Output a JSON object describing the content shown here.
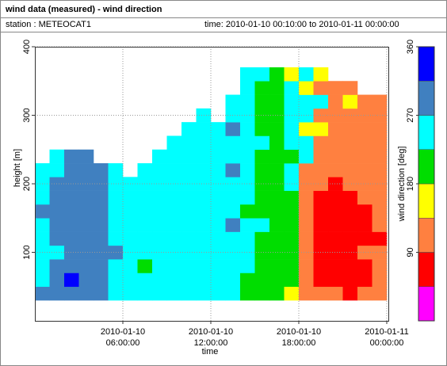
{
  "header": {
    "title": "wind data (measured) - wind direction",
    "station": "station : METEOCAT1",
    "time": "time: 2010-01-10 00:10:00 to 2010-01-11 00:00:00"
  },
  "chart_data": {
    "type": "heatmap",
    "xlabel": "time",
    "ylabel": "height [m]",
    "xlim": [
      0,
      24
    ],
    "ylim": [
      0,
      400
    ],
    "xticks": [
      {
        "value": 6,
        "label": [
          "2010-01-10",
          "06:00:00"
        ]
      },
      {
        "value": 12,
        "label": [
          "2010-01-10",
          "12:00:00"
        ]
      },
      {
        "value": 18,
        "label": [
          "2010-01-10",
          "18:00:00"
        ]
      },
      {
        "value": 24,
        "label": [
          "2010-01-11",
          "00:00:00"
        ]
      }
    ],
    "yticks": [
      100,
      200,
      300,
      400
    ],
    "grid": true,
    "x_edges": [
      0,
      1,
      2,
      3,
      4,
      5,
      6,
      7,
      8,
      9,
      10,
      11,
      12,
      13,
      14,
      15,
      16,
      17,
      18,
      19,
      20,
      21,
      22,
      23,
      24
    ],
    "y_edges": [
      30,
      50,
      70,
      90,
      110,
      130,
      150,
      170,
      190,
      210,
      230,
      250,
      270,
      290,
      310,
      330,
      350,
      370
    ],
    "z": [
      [
        290,
        250,
        250,
        250,
        250,
        250,
        290,
        250,
        250,
        250,
        null,
        null,
        null,
        null,
        null,
        null,
        null
      ],
      [
        290,
        290,
        290,
        250,
        290,
        290,
        290,
        290,
        290,
        250,
        250,
        null,
        null,
        null,
        null,
        null,
        null
      ],
      [
        290,
        330,
        290,
        290,
        290,
        290,
        290,
        290,
        290,
        290,
        290,
        null,
        null,
        null,
        null,
        null,
        null
      ],
      [
        290,
        290,
        290,
        290,
        290,
        290,
        290,
        290,
        290,
        290,
        290,
        null,
        null,
        null,
        null,
        null,
        null
      ],
      [
        290,
        290,
        290,
        290,
        290,
        290,
        290,
        290,
        290,
        290,
        null,
        null,
        null,
        null,
        null,
        null,
        null
      ],
      [
        250,
        250,
        250,
        290,
        250,
        250,
        250,
        250,
        250,
        250,
        null,
        null,
        null,
        null,
        null,
        null,
        null
      ],
      [
        250,
        250,
        250,
        250,
        250,
        250,
        250,
        250,
        250,
        null,
        null,
        null,
        null,
        null,
        null,
        null,
        null
      ],
      [
        250,
        250,
        200,
        250,
        250,
        250,
        250,
        250,
        250,
        250,
        null,
        null,
        null,
        null,
        null,
        null,
        null
      ],
      [
        250,
        250,
        250,
        250,
        250,
        250,
        250,
        250,
        250,
        250,
        250,
        null,
        null,
        null,
        null,
        null,
        null
      ],
      [
        250,
        250,
        250,
        250,
        250,
        250,
        250,
        250,
        250,
        250,
        250,
        250,
        null,
        null,
        null,
        null,
        null
      ],
      [
        250,
        250,
        250,
        250,
        250,
        250,
        250,
        250,
        250,
        250,
        250,
        250,
        250,
        null,
        null,
        null,
        null
      ],
      [
        250,
        250,
        250,
        250,
        250,
        250,
        250,
        250,
        250,
        250,
        250,
        250,
        250,
        250,
        null,
        null,
        null
      ],
      [
        250,
        250,
        250,
        250,
        250,
        250,
        250,
        250,
        250,
        250,
        250,
        250,
        250,
        null,
        null,
        null,
        null
      ],
      [
        250,
        250,
        250,
        250,
        250,
        290,
        250,
        250,
        250,
        290,
        250,
        250,
        290,
        250,
        250,
        null,
        null
      ],
      [
        200,
        200,
        250,
        250,
        250,
        250,
        200,
        250,
        250,
        250,
        250,
        250,
        250,
        250,
        250,
        250,
        250
      ],
      [
        200,
        200,
        200,
        200,
        200,
        250,
        200,
        200,
        200,
        200,
        200,
        250,
        200,
        200,
        200,
        200,
        250
      ],
      [
        200,
        200,
        200,
        200,
        200,
        200,
        200,
        200,
        200,
        200,
        200,
        200,
        200,
        200,
        200,
        200,
        200
      ],
      [
        160,
        200,
        200,
        200,
        200,
        200,
        200,
        200,
        250,
        250,
        200,
        250,
        250,
        250,
        250,
        250,
        160
      ],
      [
        110,
        110,
        110,
        110,
        110,
        110,
        110,
        110,
        110,
        110,
        250,
        250,
        160,
        250,
        250,
        160,
        250
      ],
      [
        110,
        70,
        70,
        70,
        70,
        70,
        70,
        70,
        110,
        110,
        110,
        110,
        160,
        110,
        250,
        110,
        160
      ],
      [
        110,
        70,
        70,
        70,
        70,
        70,
        70,
        70,
        70,
        110,
        110,
        110,
        110,
        110,
        110,
        110,
        null
      ],
      [
        70,
        70,
        70,
        70,
        70,
        70,
        70,
        70,
        110,
        110,
        110,
        110,
        110,
        110,
        160,
        110,
        null
      ],
      [
        110,
        70,
        70,
        110,
        70,
        70,
        70,
        110,
        110,
        110,
        110,
        110,
        110,
        110,
        110,
        null,
        null
      ],
      [
        110,
        110,
        110,
        110,
        70,
        110,
        110,
        110,
        110,
        110,
        110,
        110,
        110,
        110,
        110,
        null,
        null
      ]
    ],
    "colorbar": {
      "label": "wind direction [deg]",
      "lim": [
        0,
        360
      ],
      "ticks": [
        90,
        180,
        270,
        360
      ],
      "colors": [
        "#ff00ff",
        "#ff0000",
        "#ff8040",
        "#ffff00",
        "#00dd00",
        "#00ffff",
        "#4080c0",
        "#0000ff"
      ]
    }
  }
}
